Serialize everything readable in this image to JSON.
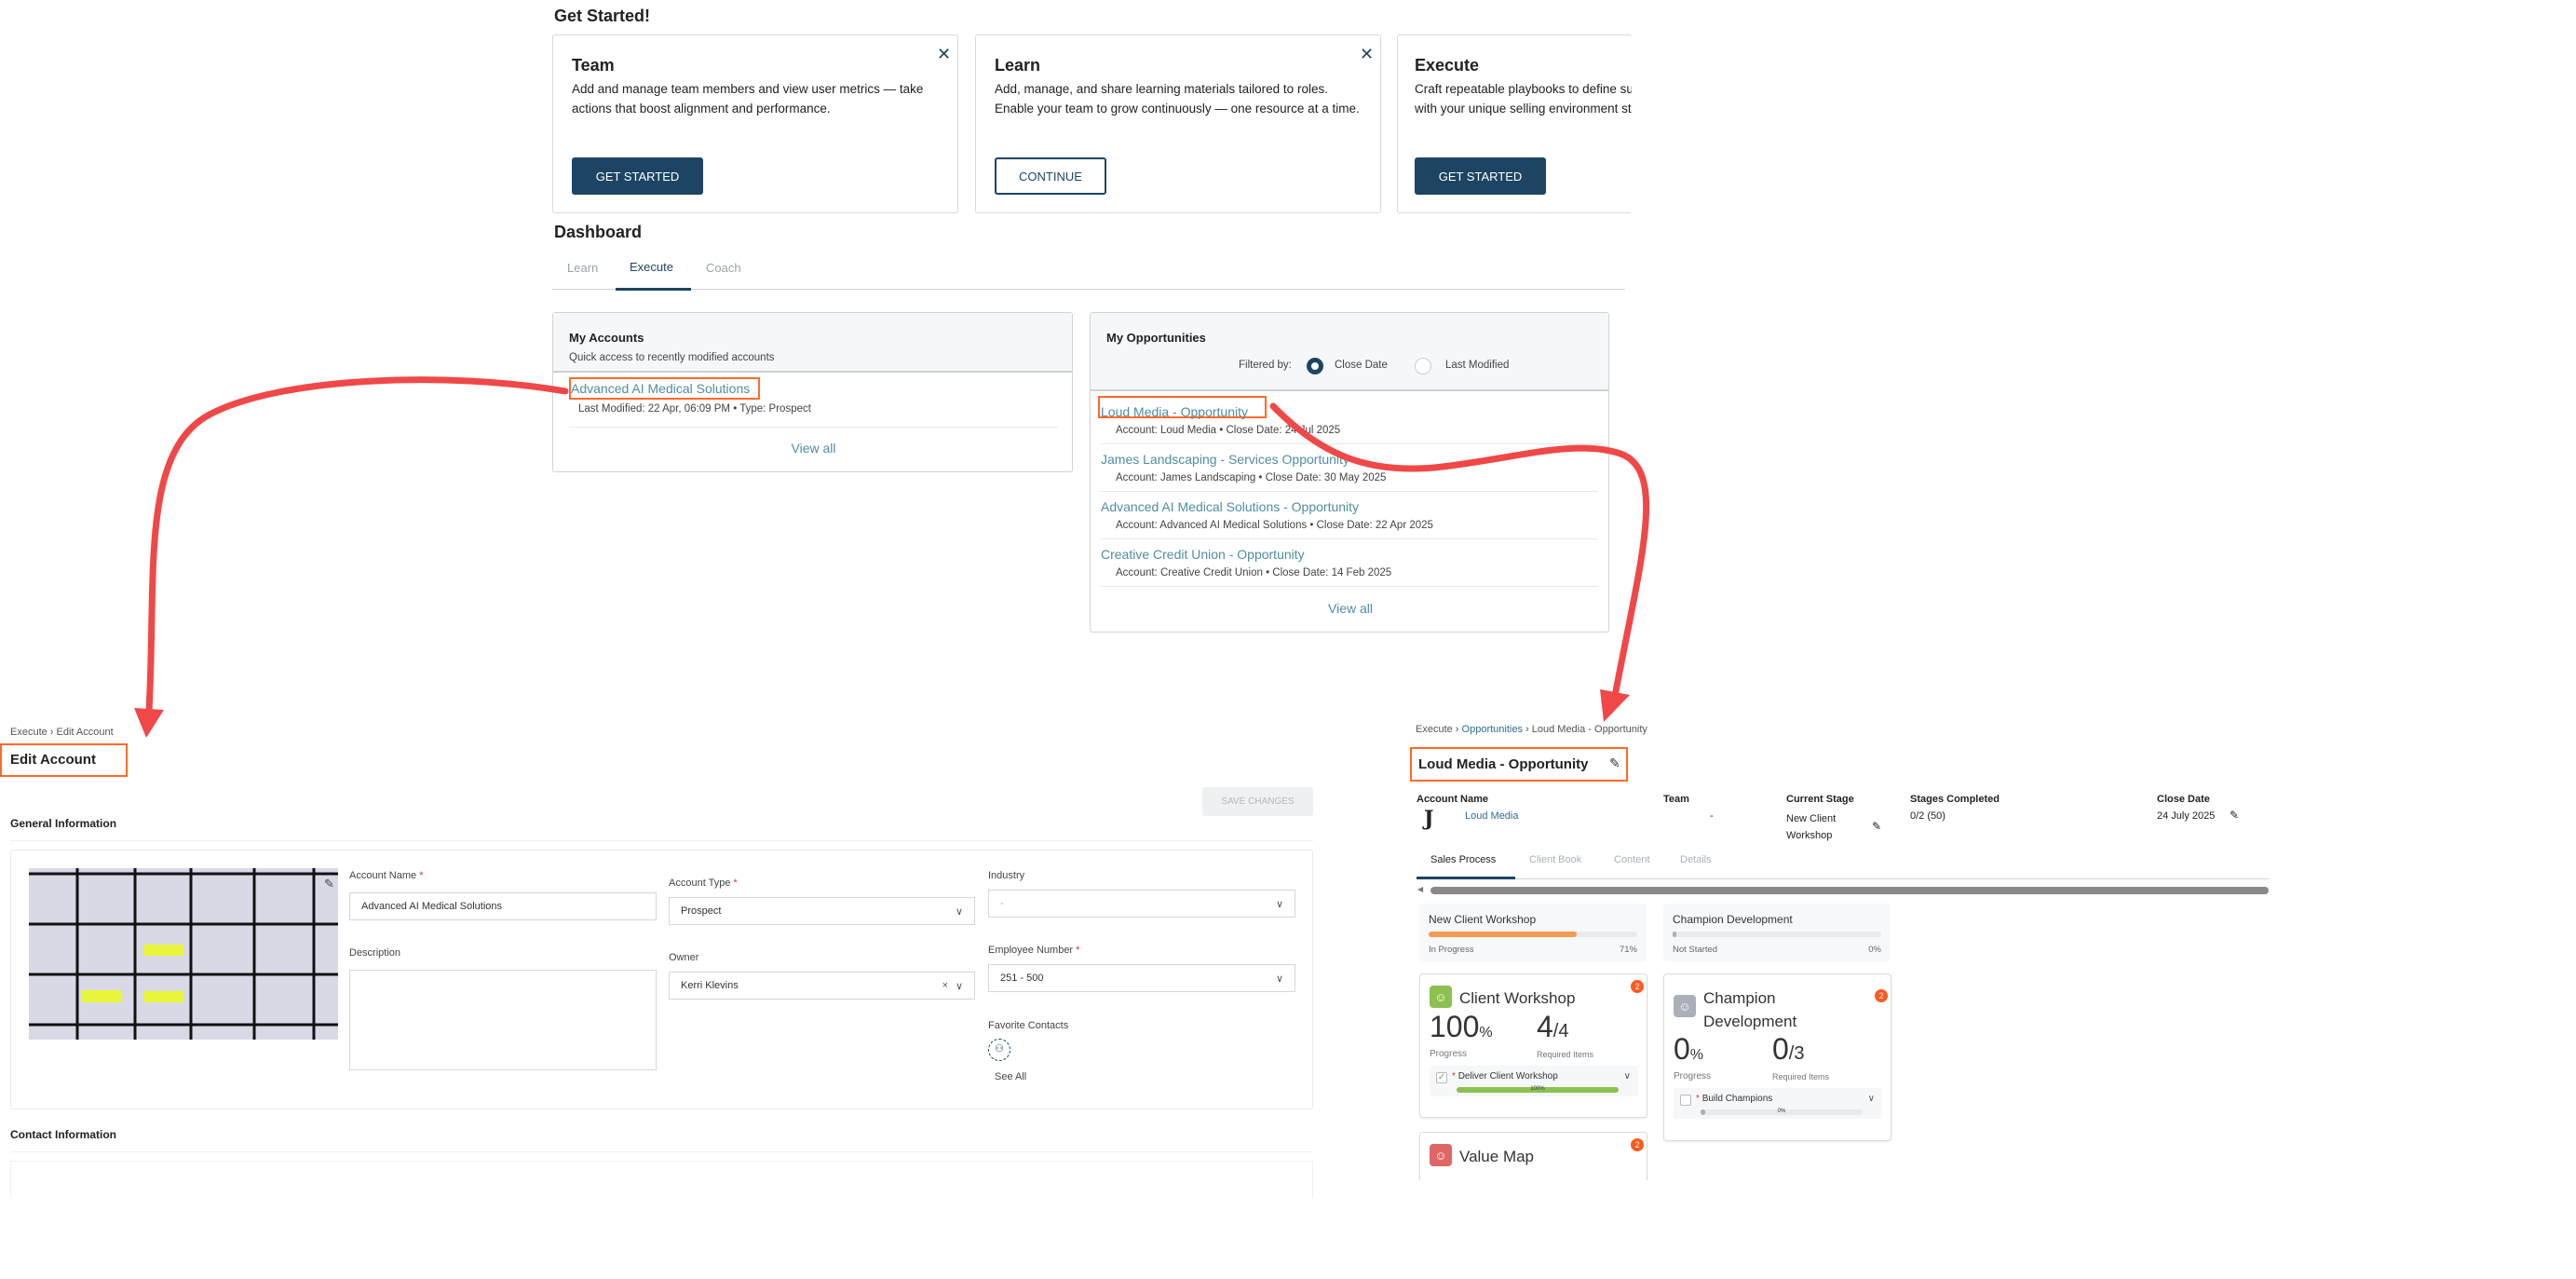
{
  "get_started": {
    "title": "Get Started!",
    "cards": [
      {
        "title": "Team",
        "body": "Add and manage team members and view user metrics — take actions that boost alignment and performance.",
        "button": "GET STARTED"
      },
      {
        "title": "Learn",
        "body": "Add, manage, and share learning materials tailored to roles. Enable your team to grow continuously — one resource at a time.",
        "button": "CONTINUE"
      },
      {
        "title": "Execute",
        "body": "Craft repeatable playbooks to define success with your unique selling environment structure.",
        "button": "GET STARTED"
      }
    ]
  },
  "dashboard": {
    "title": "Dashboard",
    "tabs": [
      "Learn",
      "Execute",
      "Coach"
    ],
    "active_tab": "Execute",
    "accounts": {
      "title": "My Accounts",
      "subtitle": "Quick access to recently modified accounts",
      "items": [
        {
          "name": "Advanced AI Medical Solutions",
          "meta": "Last Modified: 22 Apr, 06:09 PM • Type: Prospect"
        }
      ],
      "view_all": "View all"
    },
    "opportunities": {
      "title": "My Opportunities",
      "filter_label": "Filtered by:",
      "filters": [
        "Close Date",
        "Last Modified"
      ],
      "selected_filter": "Close Date",
      "items": [
        {
          "name": "Loud Media - Opportunity",
          "meta": "Account: Loud Media • Close Date: 24 Jul 2025"
        },
        {
          "name": "James Landscaping - Services Opportunity",
          "meta": "Account: James Landscaping • Close Date: 30 May 2025"
        },
        {
          "name": "Advanced AI Medical Solutions - Opportunity",
          "meta": "Account: Advanced AI Medical Solutions • Close Date: 22 Apr 2025"
        },
        {
          "name": "Creative Credit Union - Opportunity",
          "meta": "Account: Creative Credit Union • Close Date: 14 Feb 2025"
        }
      ],
      "view_all": "View all"
    }
  },
  "edit_account": {
    "breadcrumb": [
      "Execute",
      "Edit Account"
    ],
    "title": "Edit Account",
    "save": "SAVE CHANGES",
    "general": "General Information",
    "contact": "Contact Information",
    "fields": {
      "account_name_label": "Account Name",
      "account_name": "Advanced AI Medical Solutions",
      "account_type_label": "Account Type",
      "account_type": "Prospect",
      "industry_label": "Industry",
      "industry": "-",
      "description_label": "Description",
      "owner_label": "Owner",
      "owner": "Kerri Klevins",
      "employee_label": "Employee Number",
      "employee": "251 - 500",
      "favorite_label": "Favorite Contacts",
      "see_all": "See All"
    }
  },
  "opportunity": {
    "breadcrumb": [
      "Execute",
      "Opportunities",
      "Loud Media - Opportunity"
    ],
    "title": "Loud Media - Opportunity",
    "info": {
      "account_label": "Account Name",
      "account": "Loud Media",
      "team_label": "Team",
      "team": "-",
      "stage_label": "Current Stage",
      "stage": "New Client Workshop",
      "completed_label": "Stages Completed",
      "completed": "0/2 (50)",
      "close_label": "Close Date",
      "close": "24 July 2025"
    },
    "tabs": [
      "Sales Process",
      "Client Book",
      "Content",
      "Details"
    ],
    "active_tab": "Sales Process",
    "stages": [
      {
        "name": "New Client Workshop",
        "status": "In Progress",
        "pct": "71%",
        "progress": 71,
        "color": "#f79a50"
      },
      {
        "name": "Champion Development",
        "status": "Not Started",
        "pct": "0%",
        "progress": 0,
        "color": "#aab0b8"
      }
    ],
    "cards": [
      {
        "title": "Client Workshop",
        "progress": "100",
        "pct_sign": "%",
        "items": "4",
        "items_total": "/4",
        "progress_label": "Progress",
        "items_label": "Required Items",
        "badge": "2",
        "icon_color": "#8cc152",
        "task": "Deliver Client Workshop",
        "task_pct": "100%",
        "task_progress": 100
      },
      {
        "title": "Champion Development",
        "progress": "0",
        "pct_sign": "%",
        "items": "0",
        "items_total": "/3",
        "progress_label": "Progress",
        "items_label": "Required Items",
        "badge": "2",
        "icon_color": "#a9b0b8",
        "task": "Build Champions",
        "task_pct": "0%",
        "task_progress": 0
      },
      {
        "title": "Value Map",
        "badge": "2",
        "icon_color": "#e06666"
      }
    ]
  },
  "colors": {
    "primary": "#1d4563",
    "link": "#4f8ea3",
    "highlight": "#ff6a2a",
    "arrow": "#f04848"
  }
}
